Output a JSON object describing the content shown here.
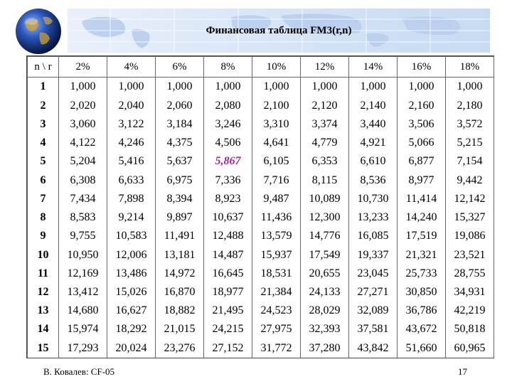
{
  "slide": {
    "title": "Финансовая таблица FM3(r,n)",
    "footer_author": "В. Ковалев: CF-05",
    "page_number": "17"
  },
  "table": {
    "corner": "n \\ r",
    "columns": [
      "2%",
      "4%",
      "6%",
      "8%",
      "10%",
      "12%",
      "14%",
      "16%",
      "18%"
    ],
    "rows": [
      {
        "n": "1",
        "values": [
          "1,000",
          "1,000",
          "1,000",
          "1,000",
          "1,000",
          "1,000",
          "1,000",
          "1,000",
          "1,000"
        ]
      },
      {
        "n": "2",
        "values": [
          "2,020",
          "2,040",
          "2,060",
          "2,080",
          "2,100",
          "2,120",
          "2,140",
          "2,160",
          "2,180"
        ]
      },
      {
        "n": "3",
        "values": [
          "3,060",
          "3,122",
          "3,184",
          "3,246",
          "3,310",
          "3,374",
          "3,440",
          "3,506",
          "3,572"
        ]
      },
      {
        "n": "4",
        "values": [
          "4,122",
          "4,246",
          "4,375",
          "4,506",
          "4,641",
          "4,779",
          "4,921",
          "5,066",
          "5,215"
        ]
      },
      {
        "n": "5",
        "values": [
          "5,204",
          "5,416",
          "5,637",
          "5,867",
          "6,105",
          "6,353",
          "6,610",
          "6,877",
          "7,154"
        ]
      },
      {
        "n": "6",
        "values": [
          "6,308",
          "6,633",
          "6,975",
          "7,336",
          "7,716",
          "8,115",
          "8,536",
          "8,977",
          "9,442"
        ]
      },
      {
        "n": "7",
        "values": [
          "7,434",
          "7,898",
          "8,394",
          "8,923",
          "9,487",
          "10,089",
          "10,730",
          "11,414",
          "12,142"
        ]
      },
      {
        "n": "8",
        "values": [
          "8,583",
          "9,214",
          "9,897",
          "10,637",
          "11,436",
          "12,300",
          "13,233",
          "14,240",
          "15,327"
        ]
      },
      {
        "n": "9",
        "values": [
          "9,755",
          "10,583",
          "11,491",
          "12,488",
          "13,579",
          "14,776",
          "16,085",
          "17,519",
          "19,086"
        ]
      },
      {
        "n": "10",
        "values": [
          "10,950",
          "12,006",
          "13,181",
          "14,487",
          "15,937",
          "17,549",
          "19,337",
          "21,321",
          "23,521"
        ]
      },
      {
        "n": "11",
        "values": [
          "12,169",
          "13,486",
          "14,972",
          "16,645",
          "18,531",
          "20,655",
          "23,045",
          "25,733",
          "28,755"
        ]
      },
      {
        "n": "12",
        "values": [
          "13,412",
          "15,026",
          "16,870",
          "18,977",
          "21,384",
          "24,133",
          "27,271",
          "30,850",
          "34,931"
        ]
      },
      {
        "n": "13",
        "values": [
          "14,680",
          "16,627",
          "18,882",
          "21,495",
          "24,523",
          "28,029",
          "32,089",
          "36,786",
          "42,219"
        ]
      },
      {
        "n": "14",
        "values": [
          "15,974",
          "18,292",
          "21,015",
          "24,215",
          "27,975",
          "32,393",
          "37,581",
          "43,672",
          "50,818"
        ]
      },
      {
        "n": "15",
        "values": [
          "17,293",
          "20,024",
          "23,276",
          "27,152",
          "31,772",
          "37,280",
          "43,842",
          "51,660",
          "60,965"
        ]
      }
    ],
    "highlight": {
      "row": 4,
      "col": 3,
      "color": "#b0209a"
    }
  },
  "decor": {
    "globe_icon": "globe-icon",
    "banner_map": "world-map-banner"
  }
}
